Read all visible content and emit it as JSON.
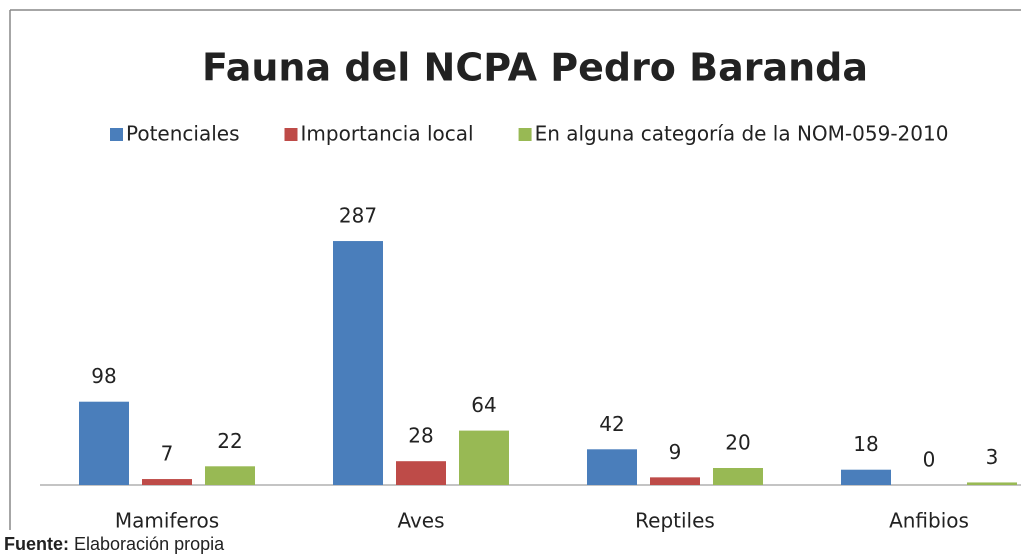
{
  "chart_data": {
    "type": "bar",
    "title": "Fauna del NCPA Pedro Baranda",
    "categories": [
      "Mamiferos",
      "Aves",
      "Reptiles",
      "Anfibios"
    ],
    "series": [
      {
        "name": "Potenciales",
        "color": "#4a7ebb",
        "values": [
          98,
          287,
          42,
          18
        ]
      },
      {
        "name": "Importancia local",
        "color": "#be4b48",
        "values": [
          7,
          28,
          9,
          0
        ]
      },
      {
        "name": "En alguna categoría de la NOM-059-2010",
        "color": "#98b954",
        "values": [
          22,
          64,
          20,
          3
        ]
      }
    ],
    "legend": "top"
  },
  "source": {
    "label": "Fuente:",
    "text": "Elaboración propia"
  }
}
